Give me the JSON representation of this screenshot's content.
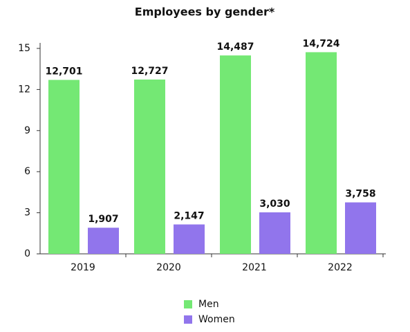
{
  "chart_data": {
    "type": "bar",
    "title": "Employees by gender*",
    "categories": [
      "2019",
      "2020",
      "2021",
      "2022"
    ],
    "series": [
      {
        "name": "Men",
        "color": "#74e874",
        "values": [
          12.701,
          12.727,
          14.487,
          14.724
        ],
        "value_labels": [
          "12,701",
          "12,727",
          "14,487",
          "14,724"
        ]
      },
      {
        "name": "Women",
        "color": "#9175ec",
        "values": [
          1.907,
          2.147,
          3.03,
          3.758
        ],
        "value_labels": [
          "1,907",
          "2,147",
          "3,030",
          "3,758"
        ]
      }
    ],
    "ylim": [
      0,
      15
    ],
    "yticks": [
      0,
      3,
      6,
      9,
      12,
      15
    ],
    "grid": false,
    "legend": "bottom"
  }
}
